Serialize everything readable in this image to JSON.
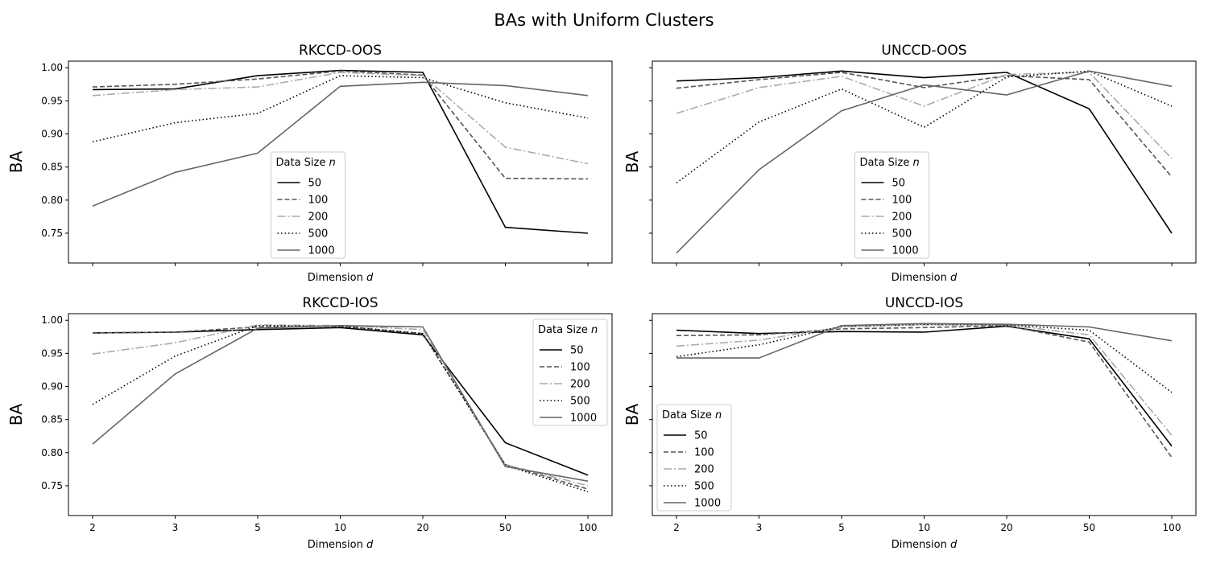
{
  "figure_title": "BAs with Uniform Clusters",
  "styles": [
    {
      "color": "#000000",
      "dash": ""
    },
    {
      "color": "#555555",
      "dash": "6 3"
    },
    {
      "color": "#aaaaaa",
      "dash": "10 3 2 3"
    },
    {
      "color": "#000000",
      "dash": "1.5 3"
    },
    {
      "color": "#666666",
      "dash": ""
    }
  ],
  "chart_data": [
    {
      "type": "line",
      "title": "RKCCD-OOS",
      "xlabel": "Dimension d",
      "ylabel": "BA",
      "categories": [
        "2",
        "3",
        "5",
        "10",
        "20",
        "50",
        "100"
      ],
      "ylim": [
        0.705,
        1.01
      ],
      "yticks": [
        "0.75",
        "0.80",
        "0.85",
        "0.90",
        "0.95",
        "1.00"
      ],
      "show_xticklabels": false,
      "show_yticklabels": true,
      "legend": {
        "title": "Data Size n",
        "placement": "lower-center"
      },
      "series": [
        {
          "name": "50",
          "values": [
            0.967,
            0.968,
            0.988,
            0.996,
            0.993,
            0.759,
            0.75
          ]
        },
        {
          "name": "100",
          "values": [
            0.971,
            0.975,
            0.983,
            0.995,
            0.989,
            0.833,
            0.832
          ]
        },
        {
          "name": "200",
          "values": [
            0.958,
            0.967,
            0.971,
            0.993,
            0.988,
            0.88,
            0.855
          ]
        },
        {
          "name": "500",
          "values": [
            0.888,
            0.917,
            0.931,
            0.988,
            0.985,
            0.947,
            0.924
          ]
        },
        {
          "name": "1000",
          "values": [
            0.791,
            0.842,
            0.871,
            0.972,
            0.978,
            0.973,
            0.958
          ]
        }
      ]
    },
    {
      "type": "line",
      "title": "UNCCD-OOS",
      "xlabel": "Dimension d",
      "ylabel": "BA",
      "categories": [
        "2",
        "3",
        "5",
        "10",
        "20",
        "50",
        "100"
      ],
      "ylim": [
        0.705,
        1.01
      ],
      "yticks": [
        "0.75",
        "0.80",
        "0.85",
        "0.90",
        "0.95",
        "1.00"
      ],
      "show_xticklabels": false,
      "show_yticklabels": false,
      "legend": {
        "title": "Data Size n",
        "placement": "lower-center"
      },
      "series": [
        {
          "name": "50",
          "values": [
            0.98,
            0.985,
            0.995,
            0.985,
            0.993,
            0.938,
            0.75
          ]
        },
        {
          "name": "100",
          "values": [
            0.969,
            0.982,
            0.993,
            0.97,
            0.988,
            0.982,
            0.835
          ]
        },
        {
          "name": "200",
          "values": [
            0.931,
            0.97,
            0.987,
            0.942,
            0.99,
            0.993,
            0.863
          ]
        },
        {
          "name": "500",
          "values": [
            0.826,
            0.918,
            0.968,
            0.91,
            0.986,
            0.995,
            0.942
          ]
        },
        {
          "name": "1000",
          "values": [
            0.72,
            0.846,
            0.935,
            0.974,
            0.959,
            0.995,
            0.972
          ]
        }
      ]
    },
    {
      "type": "line",
      "title": "RKCCD-IOS",
      "xlabel": "Dimension d",
      "ylabel": "BA",
      "categories": [
        "2",
        "3",
        "5",
        "10",
        "20",
        "50",
        "100"
      ],
      "ylim": [
        0.705,
        1.01
      ],
      "yticks": [
        "0.75",
        "0.80",
        "0.85",
        "0.90",
        "0.95",
        "1.00"
      ],
      "show_xticklabels": true,
      "show_yticklabels": true,
      "legend": {
        "title": "Data Size n",
        "placement": "upper-right"
      },
      "series": [
        {
          "name": "50",
          "values": [
            0.981,
            0.982,
            0.986,
            0.989,
            0.978,
            0.815,
            0.766
          ]
        },
        {
          "name": "100",
          "values": [
            0.981,
            0.982,
            0.99,
            0.991,
            0.98,
            0.782,
            0.745
          ]
        },
        {
          "name": "200",
          "values": [
            0.949,
            0.966,
            0.993,
            0.992,
            0.986,
            0.782,
            0.75
          ]
        },
        {
          "name": "500",
          "values": [
            0.873,
            0.946,
            0.992,
            0.991,
            0.98,
            0.781,
            0.741
          ]
        },
        {
          "name": "1000",
          "values": [
            0.813,
            0.919,
            0.988,
            0.992,
            0.99,
            0.779,
            0.757
          ]
        }
      ]
    },
    {
      "type": "line",
      "title": "UNCCD-IOS",
      "xlabel": "Dimension d",
      "ylabel": "BA",
      "categories": [
        "2",
        "3",
        "5",
        "10",
        "20",
        "50",
        "100"
      ],
      "ylim": [
        0.705,
        1.01
      ],
      "yticks": [
        "0.75",
        "0.80",
        "0.85",
        "0.90",
        "0.95",
        "1.00"
      ],
      "show_xticklabels": true,
      "show_yticklabels": false,
      "legend": {
        "title": "Data Size n",
        "placement": "lower-left"
      },
      "series": [
        {
          "name": "50",
          "values": [
            0.985,
            0.98,
            0.983,
            0.982,
            0.991,
            0.972,
            0.81
          ]
        },
        {
          "name": "100",
          "values": [
            0.977,
            0.978,
            0.987,
            0.989,
            0.992,
            0.967,
            0.793
          ]
        },
        {
          "name": "200",
          "values": [
            0.961,
            0.97,
            0.99,
            0.993,
            0.993,
            0.978,
            0.826
          ]
        },
        {
          "name": "500",
          "values": [
            0.945,
            0.963,
            0.991,
            0.994,
            0.993,
            0.985,
            0.891
          ]
        },
        {
          "name": "1000",
          "values": [
            0.943,
            0.943,
            0.992,
            0.995,
            0.994,
            0.99,
            0.969
          ]
        }
      ]
    }
  ]
}
